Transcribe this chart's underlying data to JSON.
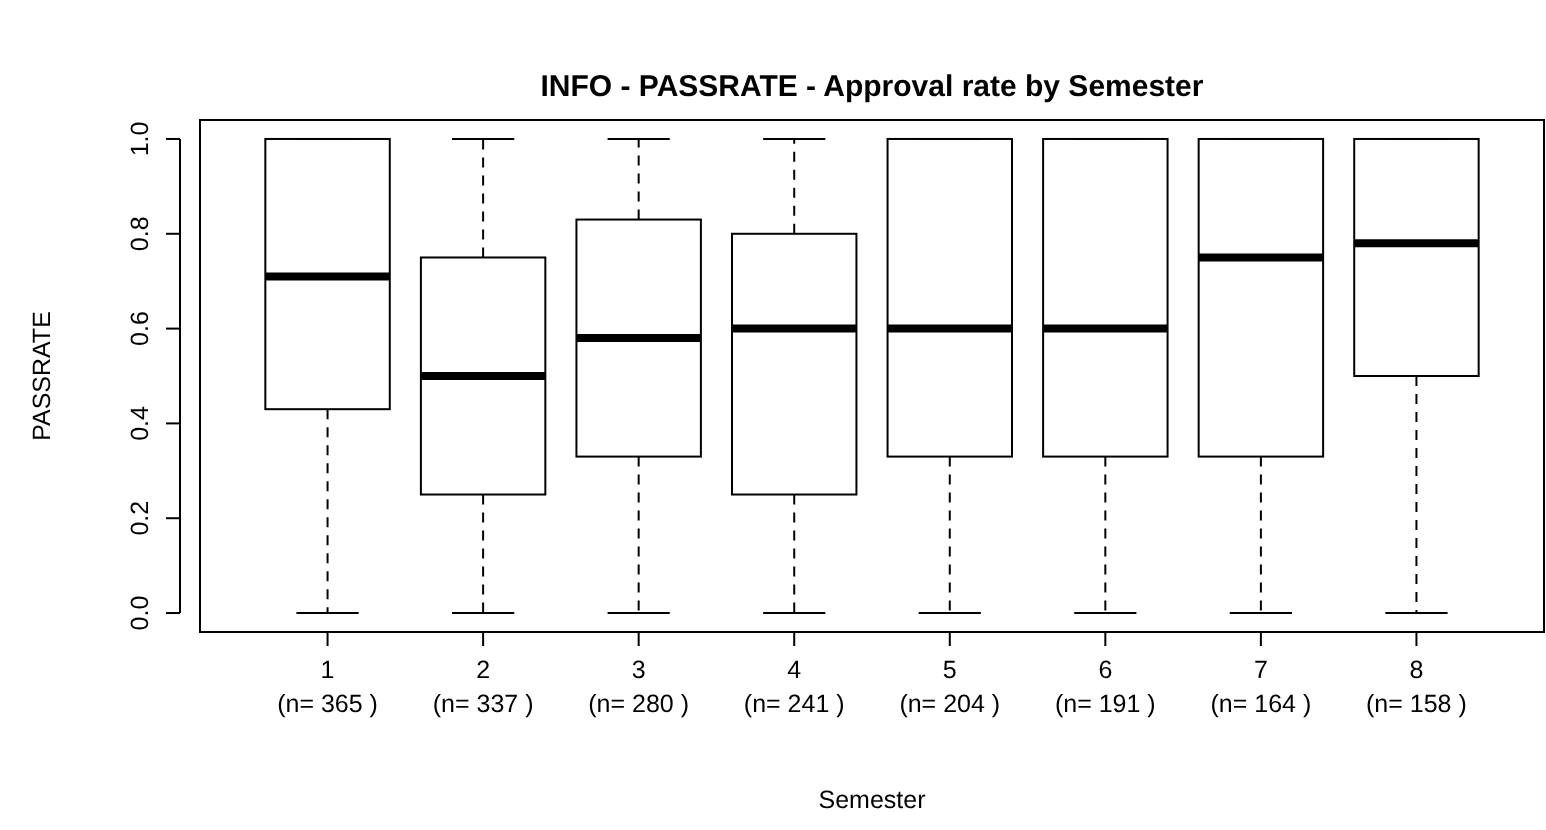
{
  "chart_data": {
    "type": "box",
    "title": "INFO  - PASSRATE - Approval rate by Semester",
    "xlabel": "Semester",
    "ylabel": "PASSRATE",
    "categories": [
      "1\n(n= 365 )",
      "2\n(n= 337 )",
      "3\n(n= 280 )",
      "4\n(n= 241 )",
      "5\n(n= 204 )",
      "6\n(n= 191 )",
      "7\n(n= 164 )",
      "8\n(n= 158 )"
    ],
    "boxes": [
      {
        "low": 0,
        "q1": 0.43,
        "median": 0.71,
        "q3": 1,
        "high": 1
      },
      {
        "low": 0,
        "q1": 0.25,
        "median": 0.5,
        "q3": 0.75,
        "high": 1
      },
      {
        "low": 0,
        "q1": 0.33,
        "median": 0.58,
        "q3": 0.83,
        "high": 1
      },
      {
        "low": 0,
        "q1": 0.25,
        "median": 0.6,
        "q3": 0.8,
        "high": 1
      },
      {
        "low": 0,
        "q1": 0.33,
        "median": 0.6,
        "q3": 1,
        "high": 1
      },
      {
        "low": 0,
        "q1": 0.33,
        "median": 0.6,
        "q3": 1,
        "high": 1
      },
      {
        "low": 0,
        "q1": 0.33,
        "median": 0.75,
        "q3": 1,
        "high": 1
      },
      {
        "low": 0,
        "q1": 0.5,
        "median": 0.78,
        "q3": 1,
        "high": 1
      }
    ],
    "ylim": [
      -0.04,
      1.04
    ],
    "yticks": [
      {
        "value": 0,
        "label": "0.0"
      },
      {
        "value": 0.2,
        "label": "0.2"
      },
      {
        "value": 0.4,
        "label": "0.4"
      },
      {
        "value": 0.6,
        "label": "0.6"
      },
      {
        "value": 0.8,
        "label": "0.8"
      },
      {
        "value": 1,
        "label": "1.0"
      }
    ]
  }
}
